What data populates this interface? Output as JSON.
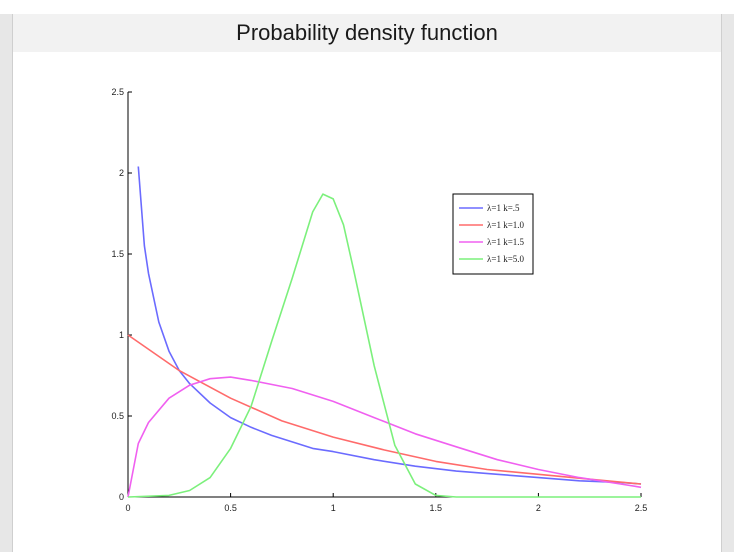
{
  "window": {
    "title": "Probability density function"
  },
  "chart_data": {
    "type": "line",
    "title": "Probability density function",
    "xlabel": "",
    "ylabel": "",
    "xlim": [
      0,
      2.5
    ],
    "ylim": [
      0,
      2.5
    ],
    "xticks": [
      0,
      0.5,
      1,
      1.5,
      2,
      2.5
    ],
    "xtick_labels": [
      "0",
      "0.5",
      "1",
      "1.5",
      "2",
      "2.5"
    ],
    "yticks": [
      0,
      0.5,
      1,
      1.5,
      2,
      2.5
    ],
    "ytick_labels": [
      "0",
      "0.5",
      "1",
      "1.5",
      "2",
      "2.5"
    ],
    "grid": false,
    "legend_position": "upper-right",
    "series": [
      {
        "name": "λ=1 k=.5",
        "color": "#6b6bff",
        "x": [
          0.05,
          0.08,
          0.1,
          0.15,
          0.2,
          0.25,
          0.3,
          0.4,
          0.5,
          0.6,
          0.7,
          0.8,
          0.9,
          1.0,
          1.2,
          1.4,
          1.6,
          1.8,
          2.0,
          2.2,
          2.4,
          2.5
        ],
        "y": [
          2.04,
          1.55,
          1.38,
          1.08,
          0.9,
          0.78,
          0.7,
          0.58,
          0.49,
          0.43,
          0.38,
          0.34,
          0.3,
          0.28,
          0.23,
          0.19,
          0.16,
          0.14,
          0.12,
          0.1,
          0.09,
          0.08
        ]
      },
      {
        "name": "λ=1 k=1.0",
        "color": "#ff6b6b",
        "x": [
          0,
          0.25,
          0.5,
          0.75,
          1.0,
          1.25,
          1.5,
          1.75,
          2.0,
          2.25,
          2.5
        ],
        "y": [
          1.0,
          0.78,
          0.61,
          0.47,
          0.37,
          0.29,
          0.22,
          0.17,
          0.14,
          0.11,
          0.08
        ]
      },
      {
        "name": "λ=1 k=1.5",
        "color": "#f060f0",
        "x": [
          0,
          0.05,
          0.1,
          0.2,
          0.3,
          0.4,
          0.5,
          0.6,
          0.8,
          1.0,
          1.2,
          1.4,
          1.6,
          1.8,
          2.0,
          2.2,
          2.4,
          2.5
        ],
        "y": [
          0.0,
          0.33,
          0.46,
          0.61,
          0.69,
          0.73,
          0.74,
          0.72,
          0.67,
          0.59,
          0.49,
          0.39,
          0.31,
          0.23,
          0.17,
          0.12,
          0.08,
          0.06
        ]
      },
      {
        "name": "λ=1 k=5.0",
        "color": "#7cf07c",
        "x": [
          0,
          0.2,
          0.3,
          0.4,
          0.5,
          0.6,
          0.7,
          0.8,
          0.9,
          0.95,
          1.0,
          1.05,
          1.1,
          1.2,
          1.3,
          1.4,
          1.5,
          1.6,
          2.0,
          2.5
        ],
        "y": [
          0.0,
          0.01,
          0.04,
          0.12,
          0.3,
          0.56,
          0.96,
          1.35,
          1.76,
          1.87,
          1.84,
          1.68,
          1.4,
          0.81,
          0.32,
          0.08,
          0.01,
          0.0,
          0.0,
          0.0
        ]
      }
    ]
  }
}
